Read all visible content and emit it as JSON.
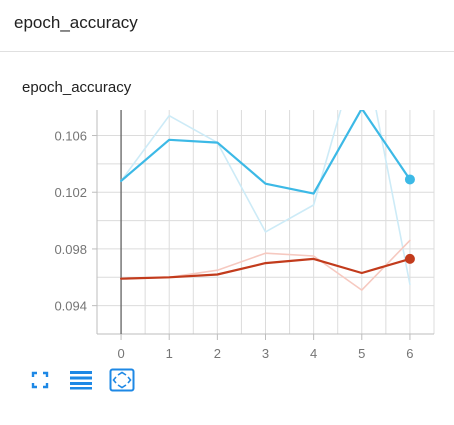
{
  "header": {
    "title": "epoch_accuracy"
  },
  "card": {
    "title": "epoch_accuracy"
  },
  "colors": {
    "series_blue": "#3cb9e6",
    "series_blue_raw": "#cdebf7",
    "series_red": "#c23b1c",
    "series_red_raw": "#f6c9c0",
    "grid": "#dcdcdc",
    "axis": "#757575",
    "toolbar_icon": "#1e88e5"
  },
  "toolbar": {
    "icons": [
      "fullscreen-icon",
      "toggle-log-icon",
      "fit-domain-icon"
    ]
  },
  "chart_data": {
    "type": "line",
    "title": "epoch_accuracy",
    "x": [
      0,
      1,
      2,
      3,
      4,
      5,
      6
    ],
    "xlim": [
      -0.5,
      6.5
    ],
    "ylim": [
      0.092,
      0.1078
    ],
    "xticks": [
      0,
      1,
      2,
      3,
      4,
      5,
      6
    ],
    "yticks": [
      0.094,
      0.098,
      0.102,
      0.106
    ],
    "ytick_labels": [
      "0.094",
      "0.098",
      "0.102",
      "0.106"
    ],
    "grid": true,
    "series": [
      {
        "color": "#3cb9e6",
        "kind": "smoothed",
        "values": [
          0.1028,
          0.1057,
          0.1055,
          0.1026,
          0.1019,
          0.1079,
          0.1029
        ]
      },
      {
        "color": "#cdebf7",
        "kind": "raw",
        "values": [
          0.1028,
          0.1074,
          0.1055,
          0.0992,
          0.1011,
          0.113,
          0.0955
        ]
      },
      {
        "color": "#c23b1c",
        "kind": "smoothed",
        "values": [
          0.0959,
          0.096,
          0.0962,
          0.097,
          0.0973,
          0.0963,
          0.0973
        ]
      },
      {
        "color": "#f6c9c0",
        "kind": "raw",
        "values": [
          0.0959,
          0.096,
          0.0965,
          0.0977,
          0.0975,
          0.0951,
          0.0986
        ]
      }
    ]
  }
}
